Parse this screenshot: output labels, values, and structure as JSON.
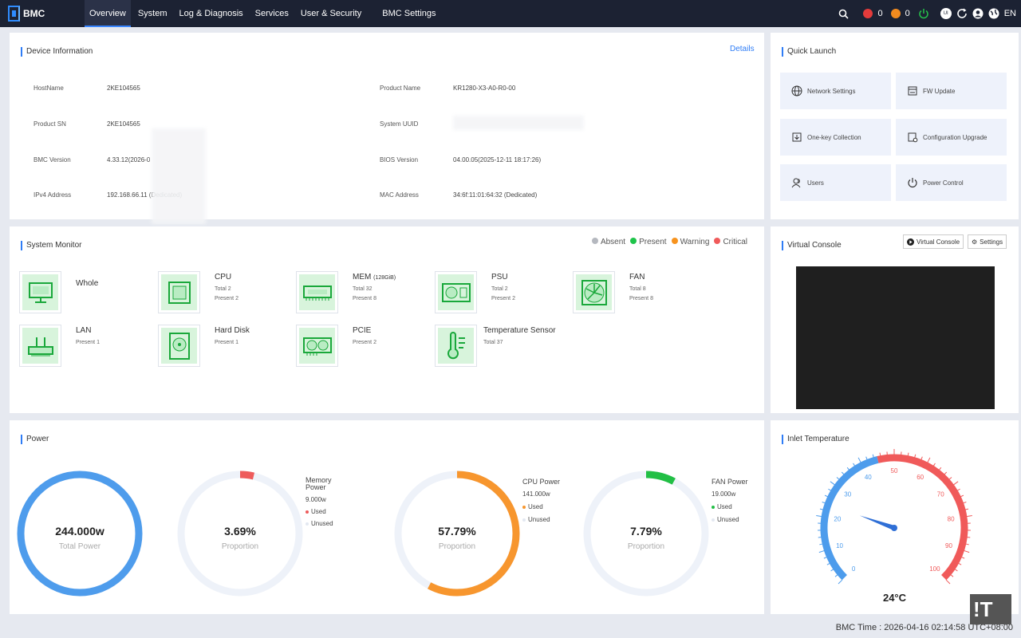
{
  "nav": {
    "logo": "BMC",
    "items": [
      "Overview",
      "System",
      "Log & Diagnosis",
      "Services",
      "User & Security",
      "BMC Settings"
    ],
    "active_index": 0,
    "critical_count": "0",
    "major_count": "0",
    "user_initials": "UI",
    "language": "EN"
  },
  "device_info": {
    "title": "Device Information",
    "details_link": "Details",
    "rows": [
      {
        "label": "HostName",
        "value": "2KE104565"
      },
      {
        "label": "Product SN",
        "value": "2KE104565"
      },
      {
        "label": "BMC Version",
        "value": "4.33.12(2026-0"
      },
      {
        "label": "IPv4 Address",
        "value": "192.168.66.11 (Dedicated)"
      }
    ],
    "rows_right": [
      {
        "label": "Product Name",
        "value": "KR1280-X3-A0-R0-00"
      },
      {
        "label": "System UUID",
        "value": ""
      },
      {
        "label": "BIOS Version",
        "value": "04.00.05(2025-12-11 18:17:26)"
      },
      {
        "label": "MAC Address",
        "value": "34:6f:11:01:64:32 (Dedicated)"
      }
    ]
  },
  "quick_launch": {
    "title": "Quick Launch",
    "items": [
      "Network Settings",
      "FW Update",
      "One-key Collection",
      "Configuration Upgrade",
      "Users",
      "Power Control"
    ]
  },
  "system_monitor": {
    "title": "System Monitor",
    "legend": [
      {
        "label": "Absent",
        "color": "#b5b8bf"
      },
      {
        "label": "Present",
        "color": "#1ec44a"
      },
      {
        "label": "Warning",
        "color": "#f7931e"
      },
      {
        "label": "Critical",
        "color": "#f05a5a"
      }
    ],
    "items": [
      {
        "name": "Whole",
        "lines": []
      },
      {
        "name": "CPU",
        "lines": [
          "Total 2",
          "Present 2"
        ]
      },
      {
        "name": "MEM",
        "name_suffix": "(128GiB)",
        "lines": [
          "Total 32",
          "Present 8"
        ]
      },
      {
        "name": "PSU",
        "lines": [
          "Total 2",
          "Present 2"
        ]
      },
      {
        "name": "FAN",
        "lines": [
          "Total 8",
          "Present 8"
        ]
      },
      {
        "name": "LAN",
        "lines": [
          "Present 1"
        ]
      },
      {
        "name": "Hard Disk",
        "lines": [
          "Present 1"
        ]
      },
      {
        "name": "PCIE",
        "lines": [
          "Present 2"
        ]
      },
      {
        "name": "Temperature Sensor",
        "lines": [
          "Total 37"
        ]
      }
    ]
  },
  "virtual_console": {
    "title": "Virtual Console",
    "launch_label": "Virtual Console",
    "settings_label": "Settings"
  },
  "power": {
    "title": "Power",
    "total": {
      "value": "244.000w",
      "label": "Total Power"
    },
    "gauges": [
      {
        "value": "3.69%",
        "label": "Proportion",
        "fraction": 0.0369,
        "color": "#ee5b5b",
        "name": "Memory Power",
        "watts": "9.000w",
        "used": "Used",
        "unused": "Unused",
        "used_color": "#ee5b5b"
      },
      {
        "value": "57.79%",
        "label": "Proportion",
        "fraction": 0.5779,
        "color": "#f7962e",
        "name": "CPU Power",
        "watts": "141.000w",
        "used": "Used",
        "unused": "Unused",
        "used_color": "#f7962e"
      },
      {
        "value": "7.79%",
        "label": "Proportion",
        "fraction": 0.0779,
        "color": "#22bf45",
        "name": "FAN Power",
        "watts": "19.000w",
        "used": "Used",
        "unused": "Unused",
        "used_color": "#22bf45"
      }
    ]
  },
  "inlet": {
    "title": "Inlet Temperature",
    "value": "24°C",
    "temperature": 24,
    "min": 0,
    "max": 100,
    "ticks": [
      "0",
      "10",
      "20",
      "30",
      "40",
      "50",
      "60",
      "70",
      "80",
      "90",
      "100"
    ]
  },
  "footer": {
    "bmc_time": "BMC Time : 2026-04-16 02:14:58 UTC+08:00"
  },
  "watermark": "!T"
}
